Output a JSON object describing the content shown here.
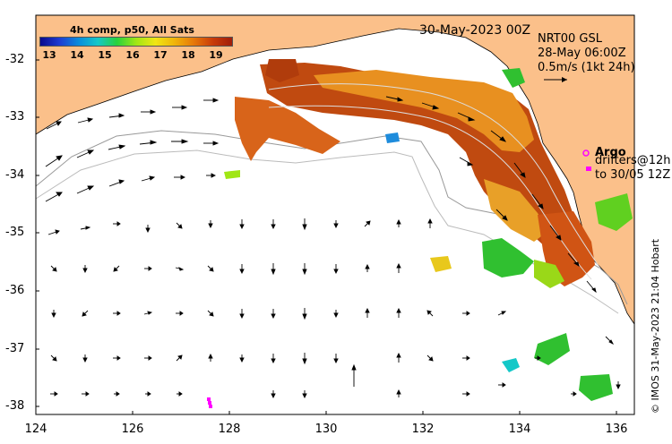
{
  "map": {
    "date": "30-May-2023 00Z",
    "colorbar": {
      "title": "4h comp, p50, All Sats",
      "ticks": [
        "13",
        "14",
        "15",
        "16",
        "17",
        "18",
        "19"
      ]
    },
    "currents": {
      "product": "NRT00 GSL",
      "time": "28-May 06:00Z",
      "scale_label": "0.5m/s (1kt 24h)"
    },
    "argo": {
      "label": "Argo",
      "drifters_line1": "drifters@12h",
      "drifters_line2": "to 30/05 12Z"
    },
    "credit": "© IMOS 31-May-2023 21:04 Hobart",
    "axes": {
      "lat_ticks": [
        "-32",
        "-33",
        "-34",
        "-35",
        "-36",
        "-37",
        "-38"
      ],
      "lon_ticks": [
        "124",
        "126",
        "128",
        "130",
        "132",
        "134",
        "136"
      ]
    },
    "colors": {
      "land": "#fbc08a",
      "sst_warm": "#c04a10",
      "sst_mid": "#e89020",
      "sst_cool": "#30c030",
      "argo": "#ff00ff"
    }
  }
}
